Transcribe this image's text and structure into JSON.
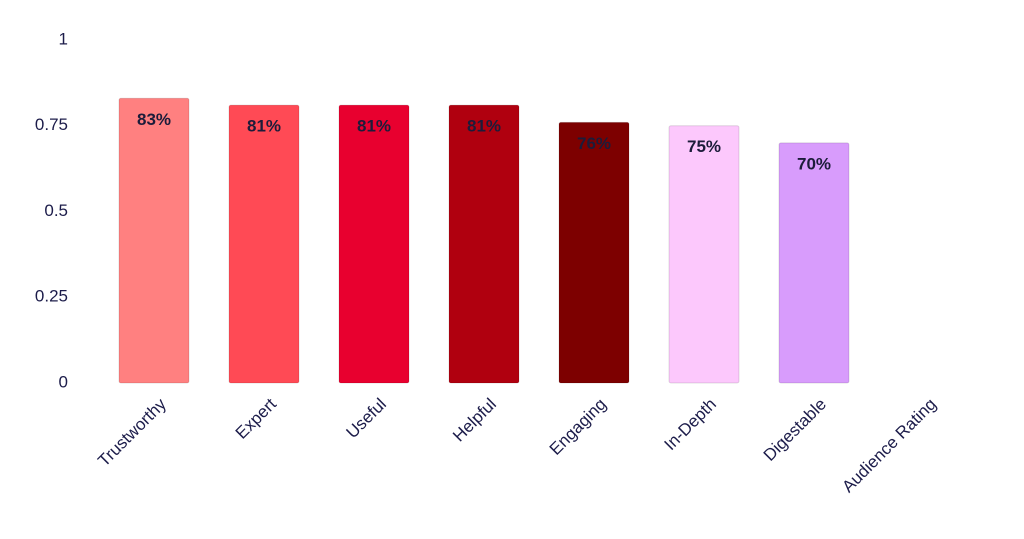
{
  "chart_data": {
    "type": "bar",
    "categories": [
      "Trustworthy",
      "Expert",
      "Useful",
      "Helpful",
      "Engaging",
      "In-Depth",
      "Digestable",
      "Audience Rating"
    ],
    "values": [
      0.83,
      0.81,
      0.81,
      0.81,
      0.76,
      0.75,
      0.7,
      null
    ],
    "value_labels": [
      "83%",
      "81%",
      "81%",
      "81%",
      "76%",
      "75%",
      "70%",
      null
    ],
    "colors": [
      "#ff8080",
      "#ff4a55",
      "#e8002f",
      "#b0000f",
      "#7d0000",
      "#fcc8fc",
      "#d89cfc",
      null
    ],
    "ylim": [
      0,
      1
    ],
    "yticks": [
      0,
      0.25,
      0.5,
      0.75,
      1
    ],
    "grid": false
  }
}
